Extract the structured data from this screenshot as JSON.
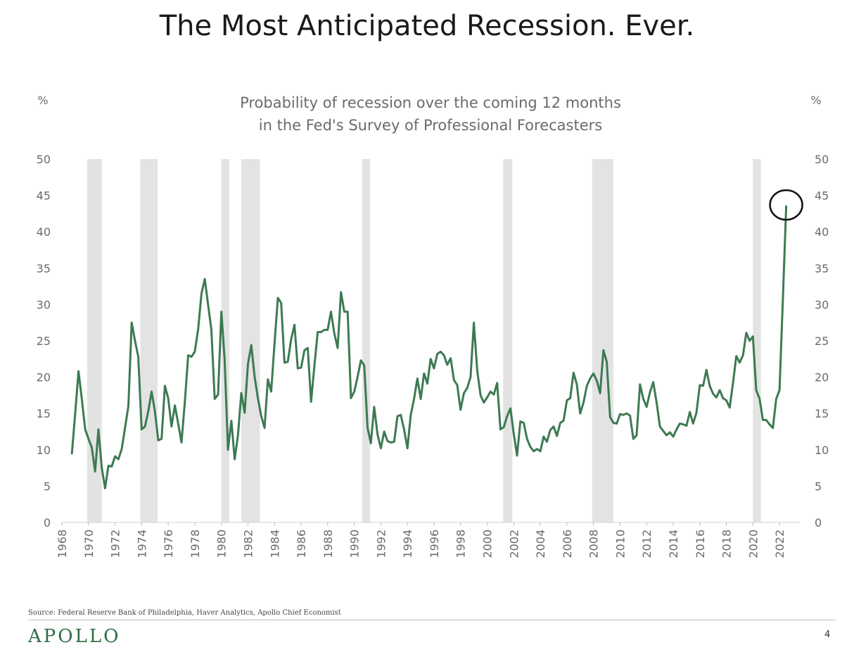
{
  "title": "The Most Anticipated Recession. Ever.",
  "subtitle_lines": [
    "Probability of recession over the coming 12 months",
    "in the Fed's Survey of Professional Forecasters"
  ],
  "source": "Source: Federal Reserve Bank of Philadelphia, Haver Analytics, Apollo Chief Economist",
  "brand": "APOLLO",
  "page_number": "4",
  "colors": {
    "line": "#3d7a52",
    "recession_band": "#e3e3e3",
    "brand": "#2f6b45"
  },
  "chart_data": {
    "type": "line",
    "title": "Probability of recession over the coming 12 months in the Fed's Survey of Professional Forecasters",
    "ylabel_left": "%",
    "ylabel_right": "%",
    "ylim": [
      0,
      50
    ],
    "xlim": [
      1968,
      2023
    ],
    "y_ticks": [
      0,
      5,
      10,
      15,
      20,
      25,
      30,
      35,
      40,
      45,
      50
    ],
    "x_ticks": [
      1968,
      1970,
      1972,
      1974,
      1976,
      1978,
      1980,
      1982,
      1984,
      1986,
      1988,
      1990,
      1992,
      1994,
      1996,
      1998,
      2000,
      2002,
      2004,
      2006,
      2008,
      2010,
      2012,
      2014,
      2016,
      2018,
      2020,
      2022
    ],
    "recessions": [
      [
        1969.9,
        1971.0
      ],
      [
        1973.9,
        1975.2
      ],
      [
        1980.0,
        1980.6
      ],
      [
        1981.5,
        1982.9
      ],
      [
        1990.6,
        1991.2
      ],
      [
        2001.2,
        2001.9
      ],
      [
        2007.9,
        2009.5
      ],
      [
        2020.0,
        2020.6
      ]
    ],
    "highlight": {
      "x": 2022.5,
      "y": 43.5,
      "shape": "circle"
    },
    "series": [
      {
        "x": [
          1968.75,
          1969.0,
          1969.25,
          1969.5,
          1969.75,
          1970.0,
          1970.25,
          1970.5,
          1970.75,
          1971.0,
          1971.25,
          1971.5,
          1971.75,
          1972.0,
          1972.25,
          1972.5,
          1972.75,
          1973.0,
          1973.25,
          1973.5,
          1973.75,
          1974.0,
          1974.25,
          1974.5,
          1974.75,
          1975.0,
          1975.25,
          1975.5,
          1975.75,
          1976.0,
          1976.25,
          1976.5,
          1976.75,
          1977.0,
          1977.25,
          1977.5,
          1977.75,
          1978.0,
          1978.25,
          1978.5,
          1978.75,
          1979.0,
          1979.25,
          1979.5,
          1979.75,
          1980.0,
          1980.25,
          1980.5,
          1980.75,
          1981.0,
          1981.25,
          1981.5,
          1981.75,
          1982.0,
          1982.25,
          1982.5,
          1982.75,
          1983.0,
          1983.25,
          1983.5,
          1983.75,
          1984.0,
          1984.25,
          1984.5,
          1984.75,
          1985.0,
          1985.25,
          1985.5,
          1985.75,
          1986.0,
          1986.25,
          1986.5,
          1986.75,
          1987.0,
          1987.25,
          1987.5,
          1987.75,
          1988.0,
          1988.25,
          1988.5,
          1988.75,
          1989.0,
          1989.25,
          1989.5,
          1989.75,
          1990.0,
          1990.25,
          1990.5,
          1990.75,
          1991.0,
          1991.25,
          1991.5,
          1991.75,
          1992.0,
          1992.25,
          1992.5,
          1992.75,
          1993.0,
          1993.25,
          1993.5,
          1993.75,
          1994.0,
          1994.25,
          1994.5,
          1994.75,
          1995.0,
          1995.25,
          1995.5,
          1995.75,
          1996.0,
          1996.25,
          1996.5,
          1996.75,
          1997.0,
          1997.25,
          1997.5,
          1997.75,
          1998.0,
          1998.25,
          1998.5,
          1998.75,
          1999.0,
          1999.25,
          1999.5,
          1999.75,
          2000.0,
          2000.25,
          2000.5,
          2000.75,
          2001.0,
          2001.25,
          2001.5,
          2001.75,
          2002.0,
          2002.25,
          2002.5,
          2002.75,
          2003.0,
          2003.25,
          2003.5,
          2003.75,
          2004.0,
          2004.25,
          2004.5,
          2004.75,
          2005.0,
          2005.25,
          2005.5,
          2005.75,
          2006.0,
          2006.25,
          2006.5,
          2006.75,
          2007.0,
          2007.25,
          2007.5,
          2007.75,
          2008.0,
          2008.25,
          2008.5,
          2008.75,
          2009.0,
          2009.25,
          2009.5,
          2009.75,
          2010.0,
          2010.25,
          2010.5,
          2010.75,
          2011.0,
          2011.25,
          2011.5,
          2011.75,
          2012.0,
          2012.25,
          2012.5,
          2012.75,
          2013.0,
          2013.25,
          2013.5,
          2013.75,
          2014.0,
          2014.25,
          2014.5,
          2014.75,
          2015.0,
          2015.25,
          2015.5,
          2015.75,
          2016.0,
          2016.25,
          2016.5,
          2016.75,
          2017.0,
          2017.25,
          2017.5,
          2017.75,
          2018.0,
          2018.25,
          2018.5,
          2018.75,
          2019.0,
          2019.25,
          2019.5,
          2019.75,
          2020.0,
          2020.25,
          2020.5,
          2020.75,
          2021.0,
          2021.25,
          2021.5,
          2021.75,
          2022.0,
          2022.25,
          2022.5
        ],
        "values": [
          9.5,
          15.0,
          20.8,
          17.0,
          12.8,
          11.5,
          10.3,
          7.0,
          12.8,
          7.5,
          4.7,
          7.8,
          7.7,
          9.1,
          8.7,
          10.1,
          13.0,
          16.0,
          27.5,
          25.0,
          22.8,
          12.8,
          13.2,
          15.3,
          18.0,
          15.3,
          11.3,
          11.5,
          18.8,
          17.1,
          13.2,
          16.1,
          13.6,
          11.0,
          16.5,
          23.0,
          22.8,
          23.5,
          26.5,
          31.5,
          33.5,
          30.0,
          26.5,
          17.0,
          17.6,
          29.0,
          22.3,
          10.0,
          14.0,
          8.7,
          12.0,
          17.8,
          15.1,
          21.8,
          24.4,
          20.1,
          17.1,
          14.6,
          13.0,
          19.7,
          18.0,
          24.7,
          30.9,
          30.2,
          22.0,
          22.1,
          25.2,
          27.2,
          21.2,
          21.3,
          23.7,
          24.0,
          16.6,
          21.5,
          26.2,
          26.2,
          26.5,
          26.5,
          29.0,
          26.0,
          24.0,
          31.7,
          29.0,
          29.0,
          17.1,
          18.0,
          20.0,
          22.3,
          21.6,
          13.0,
          10.9,
          15.9,
          12.1,
          10.2,
          12.5,
          11.2,
          11.0,
          11.1,
          14.6,
          14.8,
          12.8,
          10.2,
          14.8,
          17.0,
          19.8,
          17.0,
          20.5,
          19.1,
          22.5,
          21.2,
          23.2,
          23.5,
          23.0,
          21.7,
          22.6,
          19.6,
          18.9,
          15.5,
          17.8,
          18.5,
          20.0,
          27.5,
          21.0,
          17.5,
          16.5,
          17.2,
          18.0,
          17.6,
          19.2,
          12.8,
          13.1,
          14.6,
          15.7,
          12.2,
          9.2,
          13.9,
          13.7,
          11.5,
          10.4,
          9.8,
          10.1,
          9.8,
          11.8,
          11.1,
          12.7,
          13.2,
          11.9,
          13.7,
          14.0,
          16.8,
          17.1,
          20.6,
          19.0,
          15.0,
          16.5,
          18.8,
          19.8,
          20.5,
          19.5,
          17.8,
          23.7,
          22.1,
          14.5,
          13.7,
          13.6,
          14.9,
          14.8,
          15.0,
          14.7,
          11.5,
          12.0,
          19.0,
          17.0,
          15.9,
          17.9,
          19.3,
          16.5,
          13.2,
          12.6,
          12.0,
          12.4,
          11.8,
          12.8,
          13.6,
          13.5,
          13.3,
          15.2,
          13.6,
          15.1,
          18.9,
          18.8,
          21.0,
          18.8,
          17.7,
          17.2,
          18.2,
          17.1,
          16.8,
          15.8,
          19.2,
          22.9,
          22.0,
          23.0,
          26.1,
          25.0,
          25.6,
          18.2,
          17.0,
          14.1,
          14.1,
          13.5,
          13.0,
          17.0,
          18.2,
          30.5,
          43.5
        ]
      }
    ]
  }
}
